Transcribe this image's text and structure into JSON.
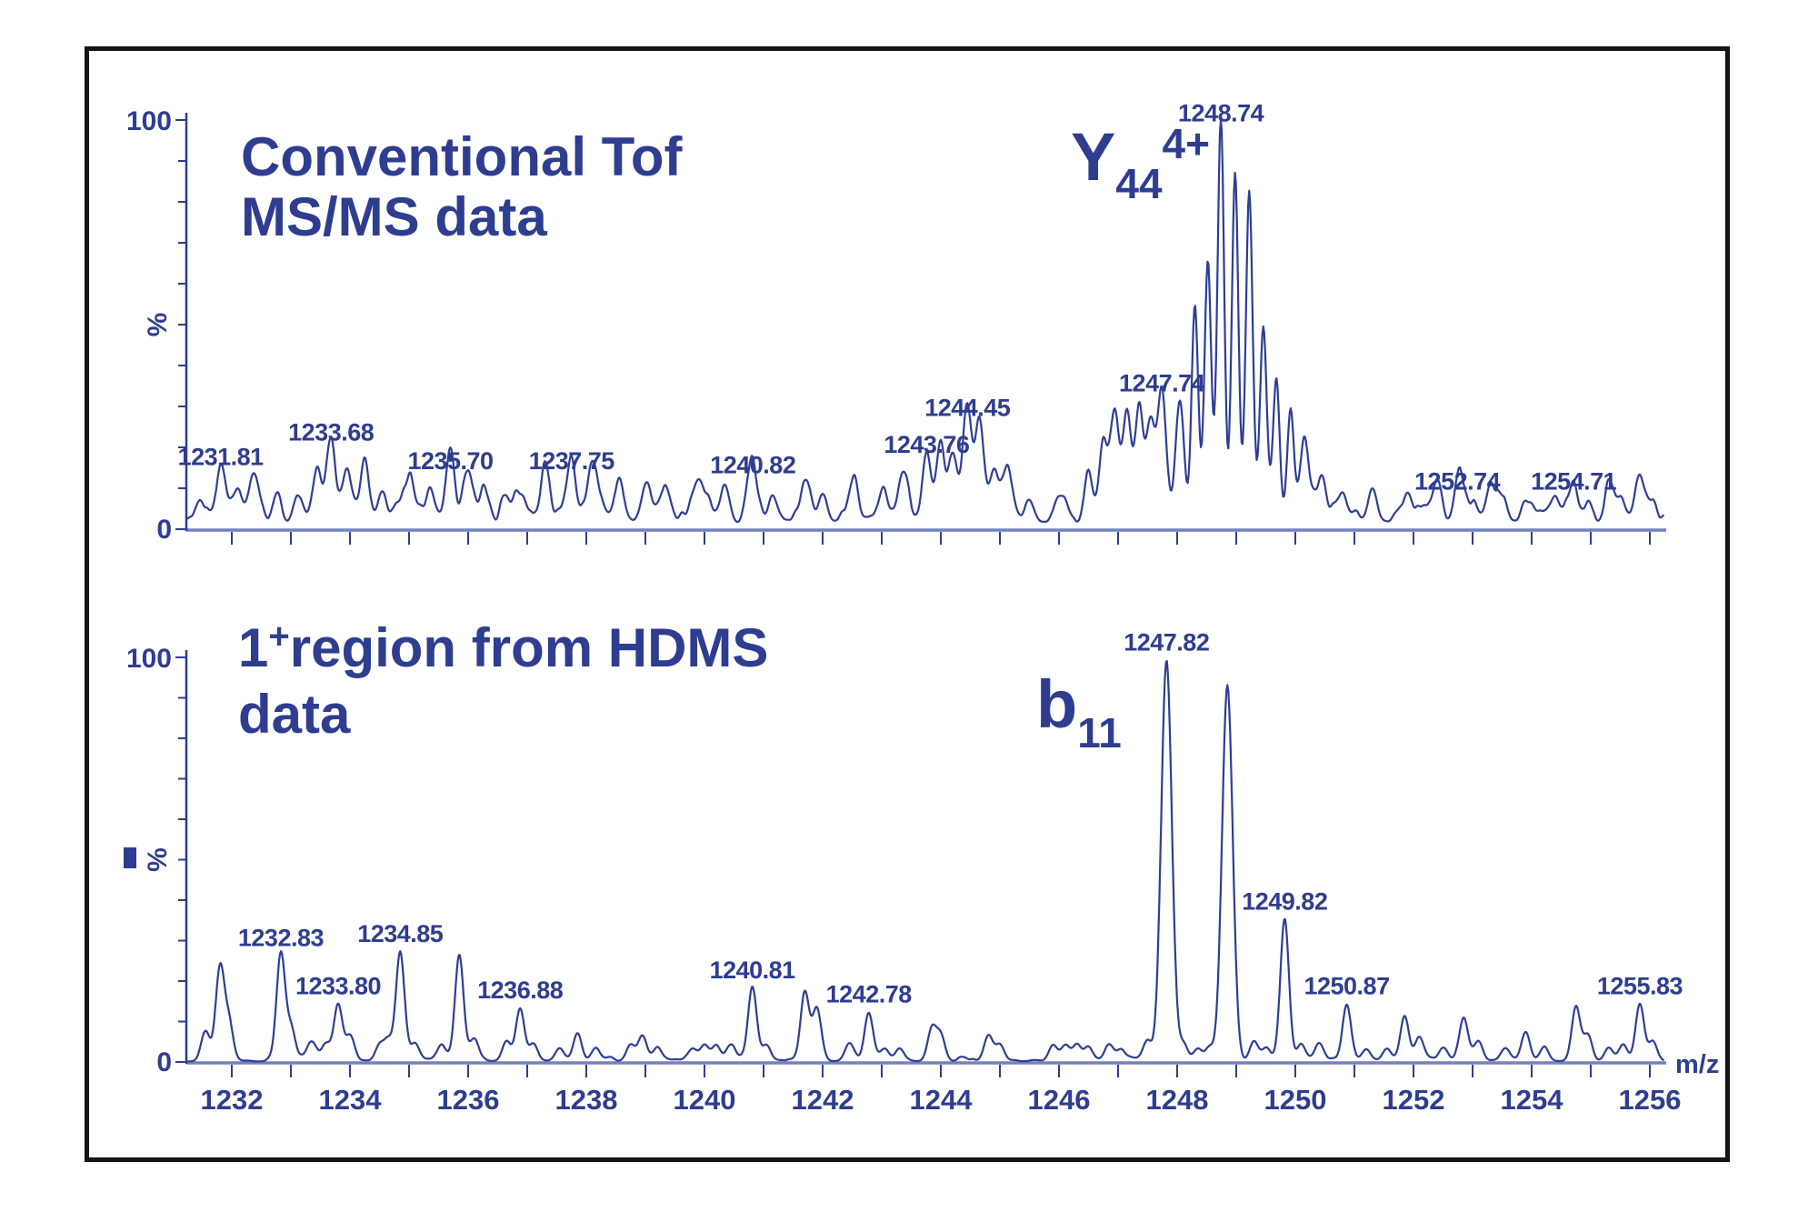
{
  "colors": {
    "ink": "#2e3d8f",
    "trace": "#2e3d96",
    "axis_light": "#7381bf",
    "frame": "#141414",
    "background": "#ffffff"
  },
  "top_panel": {
    "title_line1": "Conventional Tof",
    "title_line2": "MS/MS data",
    "annotation": {
      "base": "Y",
      "sub": "44",
      "sup": "4+"
    }
  },
  "bottom_panel": {
    "title_parts": {
      "num": "1",
      "sup": "+",
      "rest": "region from HDMS",
      "line2": "data"
    },
    "annotation": {
      "base": "b",
      "sub": "11"
    }
  },
  "chart_data": [
    {
      "type": "line",
      "name": "conventional-tof-msms-spectrum",
      "title": "Conventional Tof MS/MS data",
      "ylabel": "%",
      "xlabel": "",
      "y_axis": {
        "max_label": "100",
        "min_label": "0",
        "max": 100,
        "min": 0
      },
      "x_range": [
        1231.25,
        1256.25
      ],
      "x_tick_step": 1,
      "x_tick_labels": [],
      "annotation": "Y44 4+",
      "annotation_peak_mz": 1248.74,
      "noise_level_pct": [
        2,
        10
      ],
      "peaks": [
        [
          1231.45,
          5
        ],
        [
          1231.81,
          13,
          "1231.81"
        ],
        [
          1232.1,
          7
        ],
        [
          1232.35,
          9
        ],
        [
          1232.75,
          6
        ],
        [
          1233.1,
          6
        ],
        [
          1233.45,
          11
        ],
        [
          1233.68,
          19,
          "1233.68"
        ],
        [
          1233.95,
          10
        ],
        [
          1234.25,
          11
        ],
        [
          1234.55,
          7
        ],
        [
          1235.0,
          5
        ],
        [
          1235.35,
          8
        ],
        [
          1235.7,
          12,
          "1235.70"
        ],
        [
          1235.95,
          9
        ],
        [
          1236.3,
          6
        ],
        [
          1236.9,
          5
        ],
        [
          1237.3,
          7
        ],
        [
          1237.75,
          12,
          "1237.75"
        ],
        [
          1238.1,
          8
        ],
        [
          1238.55,
          6
        ],
        [
          1239.0,
          8
        ],
        [
          1239.4,
          5
        ],
        [
          1239.9,
          5
        ],
        [
          1240.35,
          7
        ],
        [
          1240.82,
          11,
          "1240.82"
        ],
        [
          1241.15,
          6
        ],
        [
          1241.75,
          9
        ],
        [
          1242.0,
          7
        ],
        [
          1242.5,
          5
        ],
        [
          1243.0,
          6
        ],
        [
          1243.35,
          9
        ],
        [
          1243.76,
          16,
          "1243.76"
        ],
        [
          1244.0,
          13
        ],
        [
          1244.2,
          12
        ],
        [
          1244.45,
          25,
          "1244.45"
        ],
        [
          1244.65,
          20
        ],
        [
          1244.9,
          11
        ],
        [
          1245.15,
          8
        ],
        [
          1245.5,
          5
        ],
        [
          1246.1,
          5
        ],
        [
          1246.5,
          9
        ],
        [
          1246.75,
          19
        ],
        [
          1246.95,
          24
        ],
        [
          1247.15,
          27
        ],
        [
          1247.35,
          24
        ],
        [
          1247.55,
          21
        ],
        [
          1247.74,
          31,
          "1247.74"
        ],
        [
          1248.05,
          29
        ],
        [
          1248.3,
          53,
          null,
          0.055
        ],
        [
          1248.52,
          60,
          null,
          0.055
        ],
        [
          1248.74,
          97,
          "1248.74",
          0.055
        ],
        [
          1248.98,
          84,
          null,
          0.055
        ],
        [
          1249.22,
          75,
          null,
          0.055
        ],
        [
          1249.46,
          43,
          null,
          0.055
        ],
        [
          1249.68,
          34,
          null,
          0.055
        ],
        [
          1249.92,
          25,
          null,
          0.055
        ],
        [
          1250.15,
          16
        ],
        [
          1250.45,
          11
        ],
        [
          1250.8,
          7
        ],
        [
          1251.3,
          7
        ],
        [
          1251.9,
          6
        ],
        [
          1252.4,
          7
        ],
        [
          1252.74,
          7,
          "1252.74"
        ],
        [
          1253.3,
          5
        ],
        [
          1253.9,
          5
        ],
        [
          1254.4,
          6
        ],
        [
          1254.71,
          7,
          "1254.71"
        ],
        [
          1255.3,
          5
        ],
        [
          1255.8,
          6
        ]
      ]
    },
    {
      "type": "line",
      "name": "hdms-1plus-region-spectrum",
      "title": "1+ region from HDMS data",
      "ylabel": "%",
      "xlabel": "m/z",
      "y_axis": {
        "max_label": "100",
        "min_label": "0",
        "max": 100,
        "min": 0
      },
      "x_range": [
        1231.25,
        1256.25
      ],
      "x_tick_step": 1,
      "x_tick_labels": [
        1232,
        1234,
        1236,
        1238,
        1240,
        1242,
        1244,
        1246,
        1248,
        1250,
        1252,
        1254,
        1256
      ],
      "annotation": "b11",
      "annotation_peak_mz": 1247.82,
      "noise_level_pct": [
        0,
        2
      ],
      "peaks": [
        [
          1231.55,
          7
        ],
        [
          1231.8,
          22
        ],
        [
          1231.95,
          9
        ],
        [
          1232.83,
          26,
          "1232.83"
        ],
        [
          1233.0,
          8
        ],
        [
          1233.35,
          4
        ],
        [
          1233.6,
          4
        ],
        [
          1233.8,
          14,
          "1233.80"
        ],
        [
          1234.0,
          6
        ],
        [
          1234.5,
          4
        ],
        [
          1234.65,
          5
        ],
        [
          1234.85,
          27,
          "1234.85"
        ],
        [
          1235.1,
          4
        ],
        [
          1235.55,
          4
        ],
        [
          1235.85,
          26
        ],
        [
          1236.1,
          5
        ],
        [
          1236.65,
          5
        ],
        [
          1236.88,
          13,
          "1236.88"
        ],
        [
          1237.1,
          4
        ],
        [
          1237.55,
          3
        ],
        [
          1237.85,
          6
        ],
        [
          1238.15,
          3
        ],
        [
          1238.75,
          4
        ],
        [
          1238.95,
          6
        ],
        [
          1239.2,
          3
        ],
        [
          1239.8,
          3
        ],
        [
          1240.0,
          4
        ],
        [
          1240.2,
          4
        ],
        [
          1240.45,
          3
        ],
        [
          1240.81,
          18,
          "1240.81"
        ],
        [
          1241.05,
          4
        ],
        [
          1241.7,
          17
        ],
        [
          1241.9,
          13
        ],
        [
          1242.45,
          4
        ],
        [
          1242.78,
          12,
          "1242.78"
        ],
        [
          1243.05,
          3
        ],
        [
          1243.3,
          3
        ],
        [
          1243.85,
          8
        ],
        [
          1244.0,
          6
        ],
        [
          1244.8,
          6
        ],
        [
          1245.0,
          4
        ],
        [
          1245.9,
          4
        ],
        [
          1246.1,
          3.5
        ],
        [
          1246.3,
          3.5
        ],
        [
          1246.5,
          3
        ],
        [
          1246.85,
          4
        ],
        [
          1247.05,
          3
        ],
        [
          1247.5,
          5
        ],
        [
          1247.82,
          99,
          "1247.82",
          0.09
        ],
        [
          1248.1,
          4
        ],
        [
          1248.35,
          3
        ],
        [
          1248.55,
          3.5
        ],
        [
          1248.85,
          93,
          null,
          0.09
        ],
        [
          1249.3,
          5
        ],
        [
          1249.5,
          3
        ],
        [
          1249.82,
          35,
          "1249.82"
        ],
        [
          1250.1,
          4
        ],
        [
          1250.4,
          4
        ],
        [
          1250.87,
          14,
          "1250.87"
        ],
        [
          1251.2,
          3
        ],
        [
          1251.55,
          3
        ],
        [
          1251.85,
          11
        ],
        [
          1252.1,
          5
        ],
        [
          1252.5,
          3
        ],
        [
          1252.85,
          10
        ],
        [
          1253.1,
          5
        ],
        [
          1253.55,
          3
        ],
        [
          1253.9,
          7
        ],
        [
          1254.2,
          3
        ],
        [
          1254.75,
          13
        ],
        [
          1254.95,
          6
        ],
        [
          1255.3,
          3
        ],
        [
          1255.55,
          4
        ],
        [
          1255.83,
          14,
          "1255.83"
        ],
        [
          1256.05,
          5
        ]
      ]
    }
  ]
}
